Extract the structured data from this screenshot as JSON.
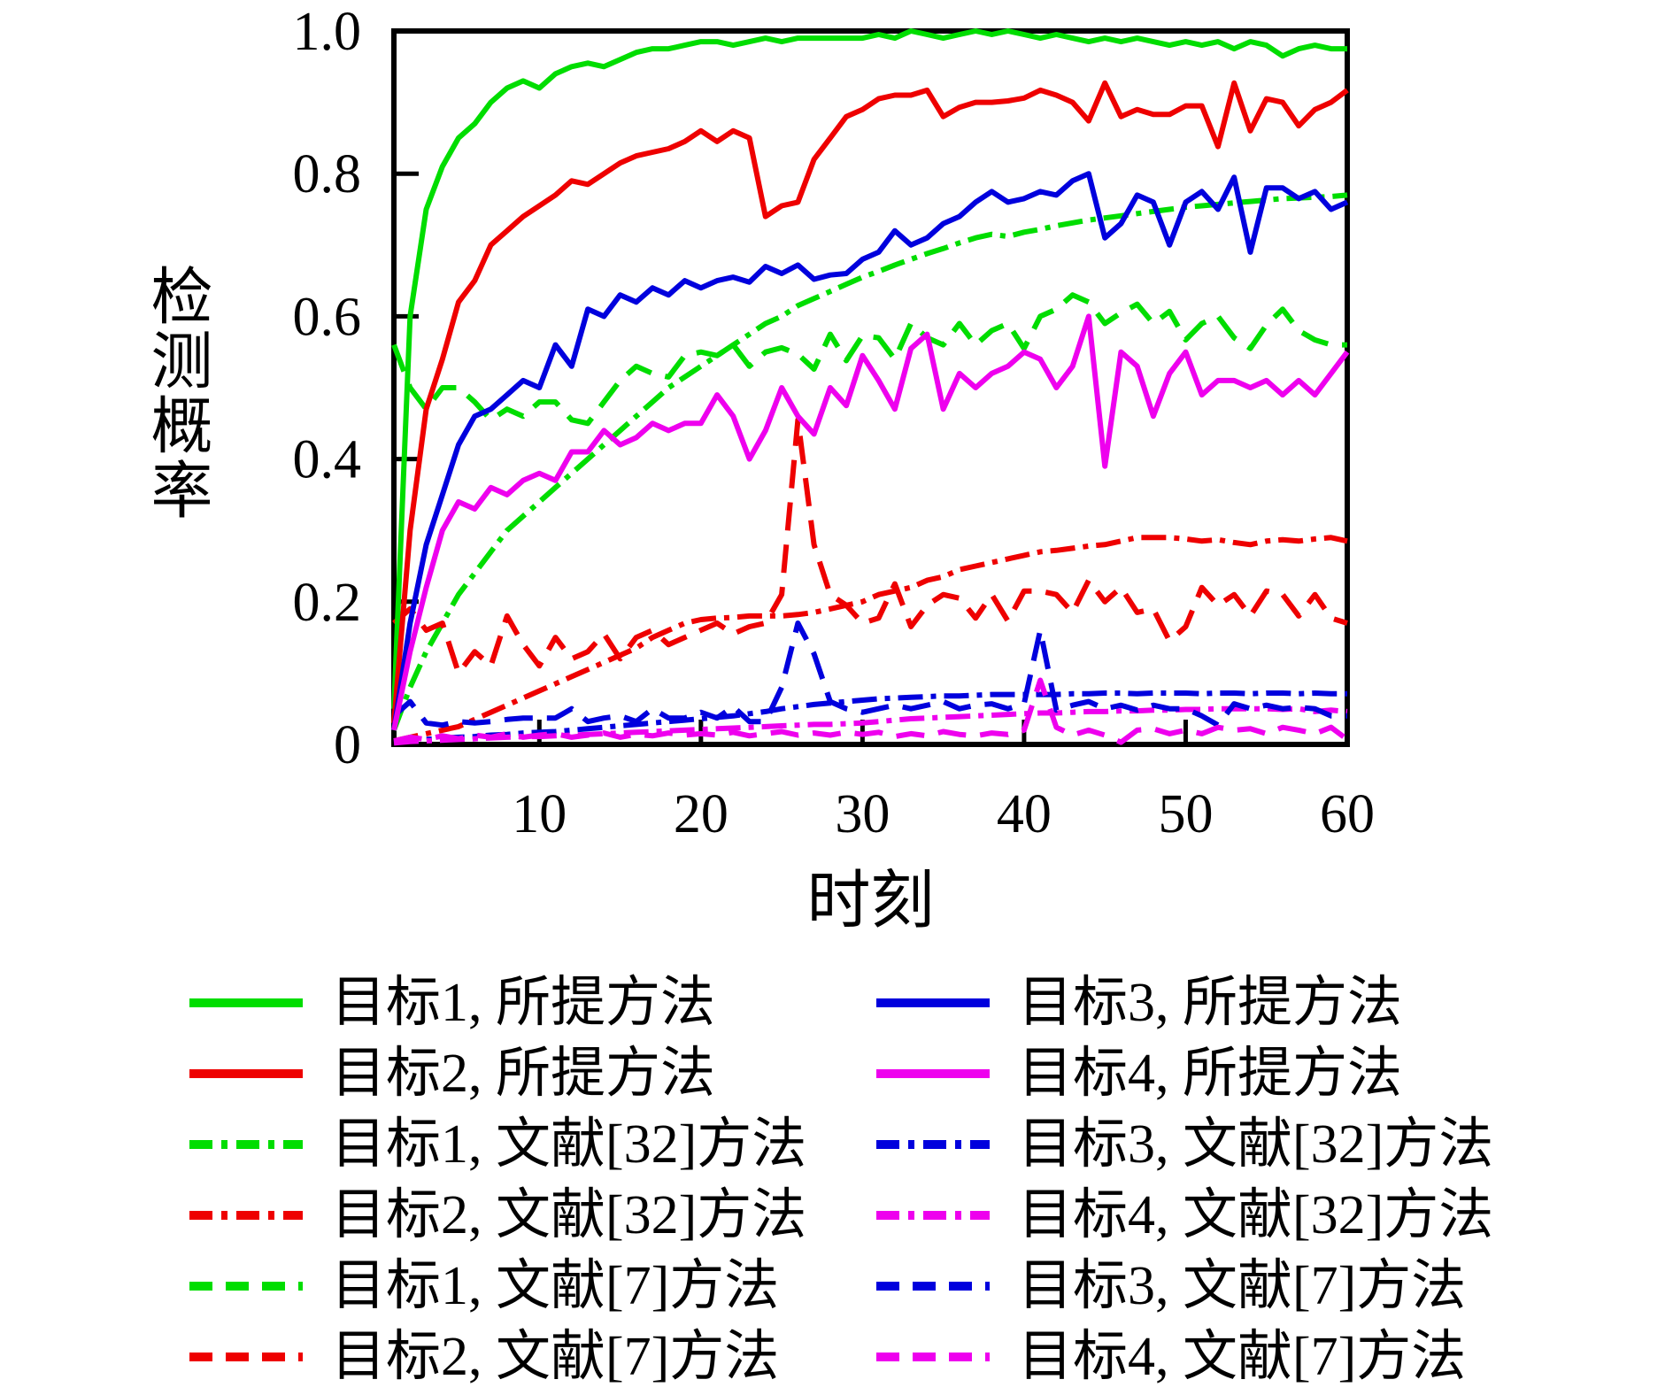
{
  "figure": {
    "background": "#ffffff",
    "axis_color": "#000000"
  },
  "chart_data": {
    "type": "line",
    "title": "",
    "xlabel": "时刻",
    "ylabel": "检测概率",
    "xlim": [
      1,
      60
    ],
    "ylim": [
      0,
      1
    ],
    "grid": false,
    "legend_position": "below",
    "x_ticks": [
      10,
      20,
      30,
      40,
      50,
      60
    ],
    "x_tick_labels": [
      "10",
      "20",
      "30",
      "40",
      "50",
      "60"
    ],
    "y_ticks": [
      0,
      0.2,
      0.4,
      0.6,
      0.8,
      1.0
    ],
    "y_tick_labels": [
      "0",
      "0.2",
      "0.4",
      "0.6",
      "0.8",
      "1.0"
    ],
    "x_start": 1,
    "x_step": 1,
    "series": [
      {
        "key": "target1-proposed",
        "label": "目标1, 所提方法",
        "color": "#00dd00",
        "style": "solid",
        "values": [
          0.05,
          0.6,
          0.75,
          0.81,
          0.85,
          0.87,
          0.9,
          0.92,
          0.93,
          0.92,
          0.94,
          0.95,
          0.955,
          0.95,
          0.96,
          0.97,
          0.975,
          0.975,
          0.98,
          0.985,
          0.985,
          0.98,
          0.985,
          0.99,
          0.985,
          0.99,
          0.99,
          0.99,
          0.99,
          0.99,
          0.995,
          0.99,
          1.0,
          0.995,
          0.99,
          0.995,
          1.0,
          0.995,
          1.0,
          0.995,
          0.99,
          0.995,
          0.99,
          0.985,
          0.99,
          0.985,
          0.99,
          0.985,
          0.98,
          0.985,
          0.98,
          0.985,
          0.975,
          0.985,
          0.98,
          0.965,
          0.975,
          0.98,
          0.975,
          0.975
        ]
      },
      {
        "key": "target2-proposed",
        "label": "目标2, 所提方法",
        "color": "#ee0000",
        "style": "solid",
        "values": [
          0.03,
          0.3,
          0.47,
          0.54,
          0.62,
          0.65,
          0.7,
          0.72,
          0.74,
          0.755,
          0.77,
          0.79,
          0.785,
          0.8,
          0.815,
          0.825,
          0.83,
          0.835,
          0.845,
          0.86,
          0.845,
          0.86,
          0.85,
          0.74,
          0.755,
          0.76,
          0.82,
          0.85,
          0.88,
          0.89,
          0.905,
          0.91,
          0.91,
          0.917,
          0.88,
          0.893,
          0.9,
          0.9,
          0.902,
          0.906,
          0.917,
          0.91,
          0.9,
          0.874,
          0.927,
          0.88,
          0.89,
          0.883,
          0.883,
          0.895,
          0.895,
          0.838,
          0.927,
          0.86,
          0.905,
          0.9,
          0.867,
          0.89,
          0.9,
          0.917
        ]
      },
      {
        "key": "target1-ref32",
        "label": "目标1, 文献[32]方法",
        "color": "#00dd00",
        "style": "dashdot",
        "values": [
          0.02,
          0.08,
          0.13,
          0.17,
          0.21,
          0.24,
          0.27,
          0.3,
          0.32,
          0.34,
          0.36,
          0.38,
          0.4,
          0.42,
          0.44,
          0.46,
          0.48,
          0.5,
          0.515,
          0.53,
          0.545,
          0.56,
          0.575,
          0.59,
          0.6,
          0.615,
          0.625,
          0.635,
          0.645,
          0.655,
          0.663,
          0.672,
          0.68,
          0.688,
          0.695,
          0.703,
          0.71,
          0.715,
          0.712,
          0.718,
          0.722,
          0.727,
          0.731,
          0.735,
          0.738,
          0.741,
          0.744,
          0.747,
          0.75,
          0.753,
          0.755,
          0.757,
          0.759,
          0.761,
          0.763,
          0.765,
          0.766,
          0.767,
          0.768,
          0.77
        ]
      },
      {
        "key": "target2-ref32",
        "label": "目标2, 文献[32]方法",
        "color": "#ee0000",
        "style": "dashdot",
        "values": [
          0.005,
          0.01,
          0.015,
          0.02,
          0.025,
          0.035,
          0.045,
          0.055,
          0.065,
          0.075,
          0.085,
          0.095,
          0.105,
          0.115,
          0.125,
          0.135,
          0.15,
          0.16,
          0.17,
          0.175,
          0.177,
          0.178,
          0.18,
          0.18,
          0.18,
          0.182,
          0.185,
          0.19,
          0.195,
          0.2,
          0.21,
          0.215,
          0.22,
          0.23,
          0.235,
          0.245,
          0.25,
          0.255,
          0.26,
          0.265,
          0.27,
          0.272,
          0.275,
          0.278,
          0.28,
          0.285,
          0.29,
          0.29,
          0.29,
          0.288,
          0.285,
          0.287,
          0.283,
          0.28,
          0.285,
          0.287,
          0.285,
          0.288,
          0.29,
          0.285
        ]
      },
      {
        "key": "target1-ref7",
        "label": "目标1, 文献[7]方法",
        "color": "#00dd00",
        "style": "dashed",
        "values": [
          0.56,
          0.5,
          0.47,
          0.5,
          0.5,
          0.48,
          0.455,
          0.47,
          0.46,
          0.48,
          0.48,
          0.455,
          0.45,
          0.48,
          0.51,
          0.53,
          0.52,
          0.515,
          0.545,
          0.55,
          0.545,
          0.56,
          0.53,
          0.55,
          0.556,
          0.547,
          0.526,
          0.575,
          0.538,
          0.573,
          0.57,
          0.54,
          0.59,
          0.57,
          0.56,
          0.59,
          0.56,
          0.58,
          0.59,
          0.555,
          0.6,
          0.61,
          0.63,
          0.62,
          0.59,
          0.605,
          0.617,
          0.59,
          0.607,
          0.567,
          0.59,
          0.6,
          0.57,
          0.555,
          0.588,
          0.61,
          0.58,
          0.567,
          0.56,
          0.56
        ]
      },
      {
        "key": "target2-ref7",
        "label": "目标2, 文献[7]方法",
        "color": "#ee0000",
        "style": "dashed",
        "values": [
          0.17,
          0.19,
          0.16,
          0.17,
          0.1,
          0.13,
          0.11,
          0.18,
          0.14,
          0.11,
          0.15,
          0.12,
          0.13,
          0.155,
          0.12,
          0.15,
          0.16,
          0.14,
          0.15,
          0.16,
          0.17,
          0.155,
          0.165,
          0.17,
          0.21,
          0.455,
          0.28,
          0.21,
          0.195,
          0.17,
          0.177,
          0.225,
          0.165,
          0.195,
          0.21,
          0.205,
          0.177,
          0.21,
          0.173,
          0.215,
          0.215,
          0.21,
          0.185,
          0.23,
          0.2,
          0.22,
          0.185,
          0.19,
          0.145,
          0.165,
          0.22,
          0.195,
          0.21,
          0.18,
          0.215,
          0.21,
          0.18,
          0.21,
          0.177,
          0.17
        ]
      },
      {
        "key": "target3-proposed",
        "label": "目标3, 所提方法",
        "color": "#0000dd",
        "style": "solid",
        "values": [
          0.02,
          0.17,
          0.28,
          0.35,
          0.42,
          0.46,
          0.47,
          0.49,
          0.51,
          0.5,
          0.56,
          0.53,
          0.61,
          0.6,
          0.63,
          0.62,
          0.64,
          0.63,
          0.65,
          0.64,
          0.65,
          0.655,
          0.648,
          0.67,
          0.66,
          0.672,
          0.652,
          0.658,
          0.66,
          0.68,
          0.69,
          0.72,
          0.7,
          0.71,
          0.73,
          0.74,
          0.76,
          0.775,
          0.76,
          0.765,
          0.775,
          0.77,
          0.79,
          0.8,
          0.71,
          0.73,
          0.77,
          0.76,
          0.7,
          0.76,
          0.775,
          0.75,
          0.795,
          0.69,
          0.78,
          0.78,
          0.765,
          0.775,
          0.75,
          0.76
        ]
      },
      {
        "key": "target4-proposed",
        "label": "目标4, 所提方法",
        "color": "#ee00ee",
        "style": "solid",
        "values": [
          0.02,
          0.13,
          0.22,
          0.3,
          0.34,
          0.33,
          0.36,
          0.35,
          0.37,
          0.38,
          0.37,
          0.41,
          0.41,
          0.44,
          0.42,
          0.43,
          0.45,
          0.44,
          0.45,
          0.45,
          0.49,
          0.46,
          0.4,
          0.44,
          0.5,
          0.46,
          0.435,
          0.5,
          0.475,
          0.545,
          0.51,
          0.47,
          0.555,
          0.575,
          0.47,
          0.52,
          0.5,
          0.52,
          0.53,
          0.55,
          0.54,
          0.5,
          0.53,
          0.6,
          0.39,
          0.55,
          0.53,
          0.46,
          0.52,
          0.55,
          0.49,
          0.51,
          0.51,
          0.5,
          0.51,
          0.49,
          0.51,
          0.49,
          0.52,
          0.55
        ]
      },
      {
        "key": "target3-ref32",
        "label": "目标3, 文献[32]方法",
        "color": "#0000dd",
        "style": "dashdot",
        "values": [
          0.003,
          0.005,
          0.007,
          0.009,
          0.01,
          0.011,
          0.013,
          0.014,
          0.016,
          0.017,
          0.018,
          0.02,
          0.022,
          0.024,
          0.026,
          0.028,
          0.03,
          0.032,
          0.034,
          0.036,
          0.038,
          0.04,
          0.043,
          0.046,
          0.05,
          0.053,
          0.056,
          0.058,
          0.06,
          0.062,
          0.064,
          0.065,
          0.066,
          0.067,
          0.068,
          0.068,
          0.069,
          0.07,
          0.07,
          0.07,
          0.07,
          0.07,
          0.071,
          0.071,
          0.072,
          0.072,
          0.071,
          0.072,
          0.072,
          0.072,
          0.071,
          0.072,
          0.072,
          0.071,
          0.072,
          0.072,
          0.071,
          0.072,
          0.071,
          0.071
        ]
      },
      {
        "key": "target4-ref32",
        "label": "目标4, 文献[32]方法",
        "color": "#ee00ee",
        "style": "dashdot",
        "values": [
          0.002,
          0.004,
          0.005,
          0.006,
          0.007,
          0.008,
          0.009,
          0.01,
          0.011,
          0.011,
          0.012,
          0.013,
          0.014,
          0.015,
          0.016,
          0.017,
          0.018,
          0.019,
          0.02,
          0.021,
          0.022,
          0.023,
          0.024,
          0.025,
          0.026,
          0.027,
          0.028,
          0.028,
          0.029,
          0.03,
          0.032,
          0.034,
          0.036,
          0.037,
          0.038,
          0.039,
          0.04,
          0.041,
          0.042,
          0.043,
          0.044,
          0.044,
          0.045,
          0.046,
          0.046,
          0.047,
          0.047,
          0.048,
          0.048,
          0.049,
          0.049,
          0.05,
          0.05,
          0.05,
          0.05,
          0.049,
          0.05,
          0.046,
          0.048,
          0.046
        ]
      },
      {
        "key": "target3-ref7",
        "label": "目标3, 文献[7]方法",
        "color": "#0000dd",
        "style": "dashed",
        "values": [
          0.04,
          0.06,
          0.03,
          0.027,
          0.032,
          0.03,
          0.032,
          0.035,
          0.037,
          0.037,
          0.037,
          0.05,
          0.032,
          0.037,
          0.04,
          0.032,
          0.05,
          0.037,
          0.037,
          0.045,
          0.037,
          0.053,
          0.032,
          0.032,
          0.08,
          0.17,
          0.127,
          0.06,
          0.05,
          0.045,
          0.05,
          0.055,
          0.05,
          0.055,
          0.06,
          0.05,
          0.055,
          0.057,
          0.05,
          0.057,
          0.16,
          0.048,
          0.055,
          0.06,
          0.05,
          0.055,
          0.048,
          0.055,
          0.05,
          0.05,
          0.04,
          0.027,
          0.057,
          0.05,
          0.055,
          0.05,
          0.052,
          0.05,
          0.04,
          0.04
        ]
      },
      {
        "key": "target4-ref7",
        "label": "目标4, 文献[7]方法",
        "color": "#ee00ee",
        "style": "dashed",
        "values": [
          0.005,
          0.01,
          0.007,
          0.012,
          0.008,
          0.013,
          0.01,
          0.015,
          0.01,
          0.013,
          0.015,
          0.01,
          0.013,
          0.016,
          0.01,
          0.014,
          0.012,
          0.016,
          0.013,
          0.015,
          0.013,
          0.017,
          0.012,
          0.015,
          0.018,
          0.013,
          0.016,
          0.013,
          0.017,
          0.014,
          0.017,
          0.011,
          0.015,
          0.012,
          0.018,
          0.014,
          0.012,
          0.016,
          0.014,
          0.02,
          0.09,
          0.024,
          0.013,
          0.02,
          0.013,
          0.003,
          0.02,
          0.022,
          0.015,
          0.02,
          0.015,
          0.024,
          0.02,
          0.022,
          0.015,
          0.024,
          0.02,
          0.015,
          0.024,
          0.007
        ]
      }
    ]
  },
  "legend": {
    "columns": [
      {
        "name": "left",
        "series": [
          0,
          1,
          2,
          3,
          4,
          5
        ]
      },
      {
        "name": "right",
        "series": [
          6,
          7,
          8,
          9,
          10,
          11
        ]
      }
    ]
  }
}
